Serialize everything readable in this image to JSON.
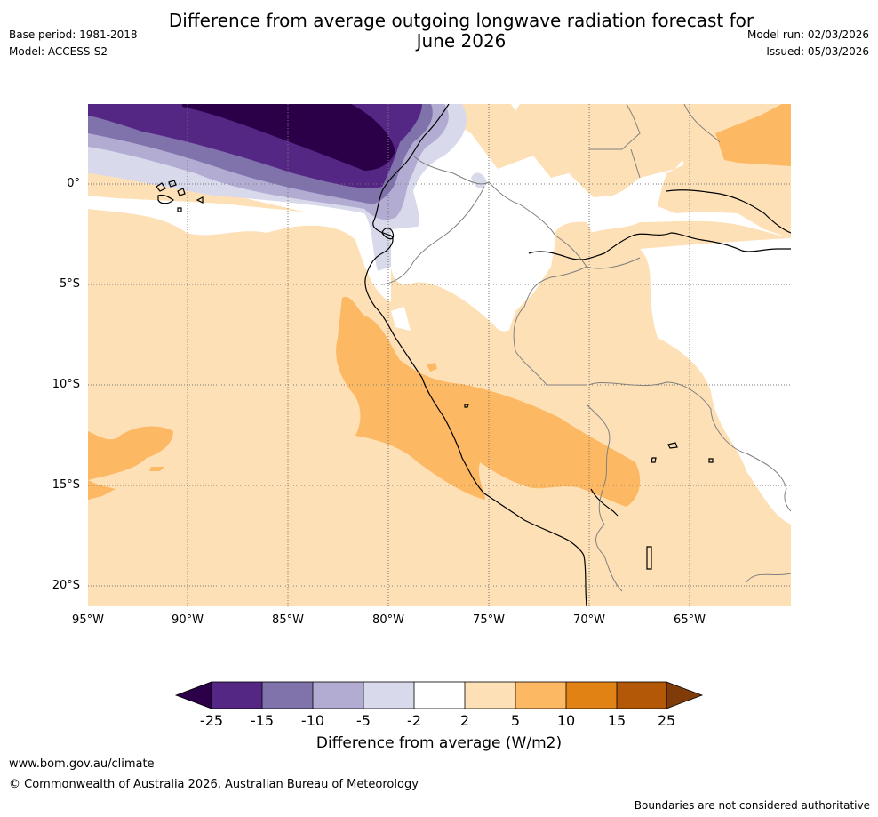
{
  "header": {
    "title_line1": "Difference from average outgoing longwave radiation forecast for",
    "title_line2": "June 2026",
    "base_period": "Base period: 1981-2018",
    "model": "Model: ACCESS-S2",
    "model_run": "Model run: 02/03/2026",
    "issued": "Issued: 05/03/2026"
  },
  "map": {
    "region": "Western South America (Peru, Ecuador) and adjacent Pacific",
    "lat_labels": [
      "0°",
      "5°S",
      "10°S",
      "15°S",
      "20°S"
    ],
    "lon_labels": [
      "95°W",
      "90°W",
      "85°W",
      "80°W",
      "75°W",
      "70°W",
      "65°W"
    ],
    "colors": {
      "neg25": "#2b0049",
      "neg15_25": "#552785",
      "neg10_15": "#8073ac",
      "neg5_10": "#b2abd2",
      "neg2_5": "#d8daeb",
      "neutral": "#ffffff",
      "pos2_5": "#fee0b6",
      "pos5_10": "#fdb863",
      "pos10_15": "#e08214",
      "pos15_25": "#b35806",
      "pos25": "#7f3b08"
    }
  },
  "colorbar": {
    "ticks": [
      "-25",
      "-15",
      "-10",
      "-5",
      "-2",
      "2",
      "5",
      "10",
      "15",
      "25"
    ],
    "label": "Difference from average (W/m2)"
  },
  "footer": {
    "website": "www.bom.gov.au/climate",
    "copyright": "© Commonwealth of Australia 2026, Australian Bureau of Meteorology",
    "disclaimer": "Boundaries are not considered authoritative"
  }
}
